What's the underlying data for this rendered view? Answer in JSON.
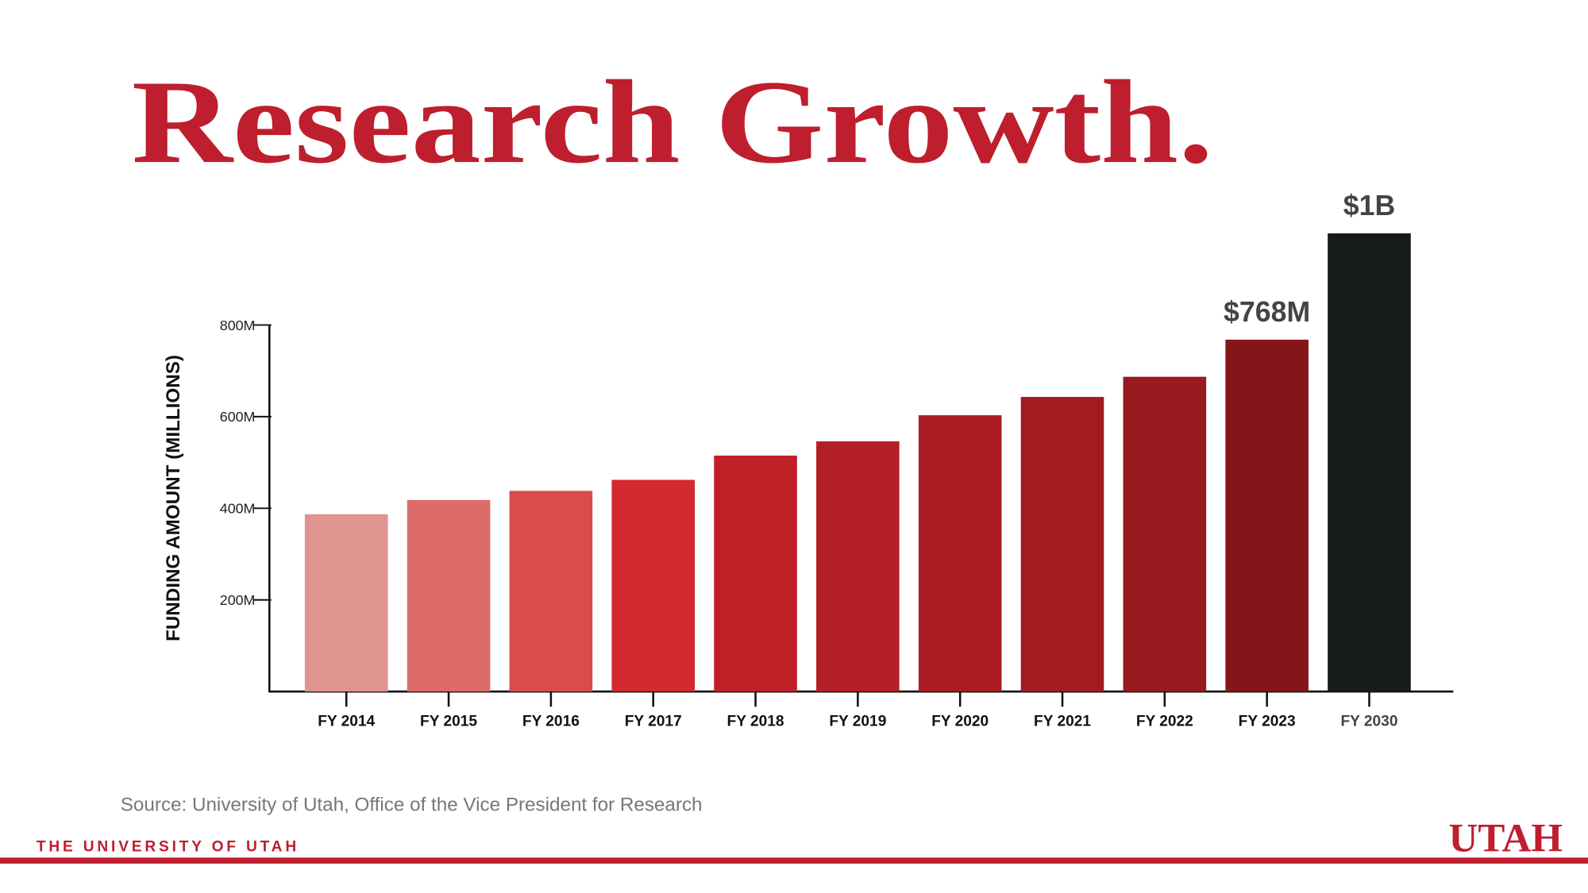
{
  "chart_data": {
    "type": "bar",
    "title": "Research Growth.",
    "y_label": "FUNDING AMOUNT (MILLIONS)",
    "categories": [
      "FY 2014",
      "FY 2015",
      "FY 2016",
      "FY 2017",
      "FY 2018",
      "FY 2019",
      "FY 2020",
      "FY 2021",
      "FY 2022",
      "FY 2023",
      "FY 2030"
    ],
    "values": [
      387,
      418,
      438,
      462,
      515,
      546,
      603,
      643,
      687,
      768,
      1000
    ],
    "value_labels": [
      null,
      null,
      null,
      null,
      null,
      null,
      null,
      null,
      null,
      "$768M",
      "$1B"
    ],
    "colors": [
      "#e09490",
      "#dc6b6a",
      "#d84c4c",
      "#d22a2e",
      "#c22029",
      "#b31f26",
      "#ab1c22",
      "#a11b21",
      "#971a1f",
      "#861519",
      "#161a19"
    ],
    "ylim": [
      0,
      800
    ],
    "yticks": [
      {
        "value": 200,
        "label": "200M"
      },
      {
        "value": 400,
        "label": "400M"
      },
      {
        "value": 600,
        "label": "600M"
      },
      {
        "value": 800,
        "label": "800M"
      }
    ],
    "source": "Source: University of Utah, Office of the Vice President for Research"
  },
  "footer": {
    "institution": "THE UNIVERSITY OF UTAH",
    "logo": "UTAH"
  }
}
